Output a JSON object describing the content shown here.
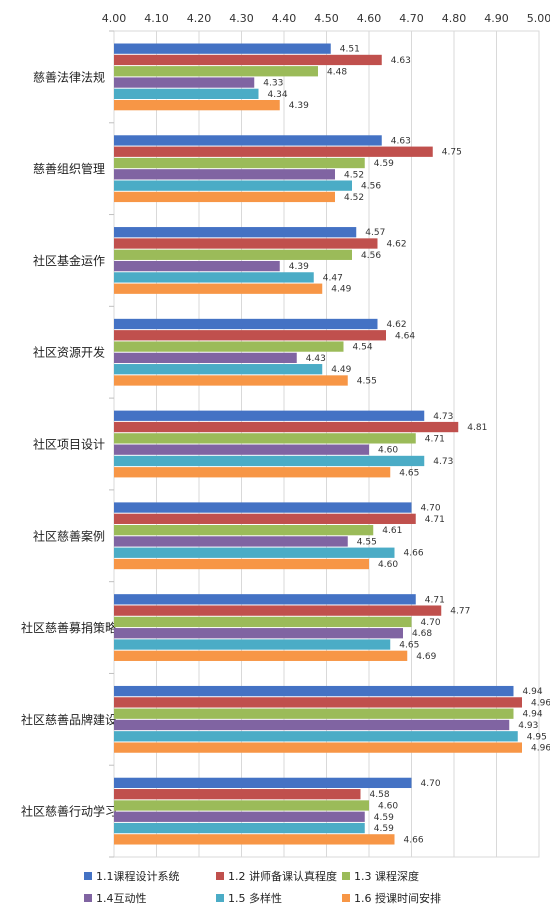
{
  "chart_data": {
    "type": "bar",
    "orientation": "horizontal",
    "x_ticks": [
      "4.00",
      "4.10",
      "4.20",
      "4.30",
      "4.40",
      "4.50",
      "4.60",
      "4.70",
      "4.80",
      "4.90",
      "5.00"
    ],
    "xlim": [
      4.0,
      5.0
    ],
    "grid": true,
    "legend_position": "bottom",
    "categories": [
      "慈善法律法规",
      "慈善组织管理",
      "社区基金运作",
      "社区资源开发",
      "社区项目设计",
      "社区慈善案例",
      "社区慈善募捐策略",
      "社区慈善品牌建设",
      "社区慈善行动学习"
    ],
    "series": [
      {
        "name": "1.1课程设计系统",
        "color": "#4472C4",
        "values": [
          4.51,
          4.63,
          4.57,
          4.62,
          4.73,
          4.7,
          4.71,
          4.94,
          4.7
        ]
      },
      {
        "name": "1.2 讲师备课认真程度",
        "color": "#C0504D",
        "values": [
          4.63,
          4.75,
          4.62,
          4.64,
          4.81,
          4.71,
          4.77,
          4.96,
          4.58
        ]
      },
      {
        "name": "1.3 课程深度",
        "color": "#9BBB59",
        "values": [
          4.48,
          4.59,
          4.56,
          4.54,
          4.71,
          4.61,
          4.7,
          4.94,
          4.6
        ]
      },
      {
        "name": "1.4互动性",
        "color": "#8064A2",
        "values": [
          4.33,
          4.52,
          4.39,
          4.43,
          4.6,
          4.55,
          4.68,
          4.93,
          4.59
        ]
      },
      {
        "name": "1.5 多样性",
        "color": "#4BACC6",
        "values": [
          4.34,
          4.56,
          4.47,
          4.49,
          4.73,
          4.66,
          4.65,
          4.95,
          4.59
        ]
      },
      {
        "name": "1.6 授课时间安排",
        "color": "#F79646",
        "values": [
          4.39,
          4.52,
          4.49,
          4.55,
          4.65,
          4.6,
          4.69,
          4.96,
          4.66
        ]
      }
    ]
  }
}
